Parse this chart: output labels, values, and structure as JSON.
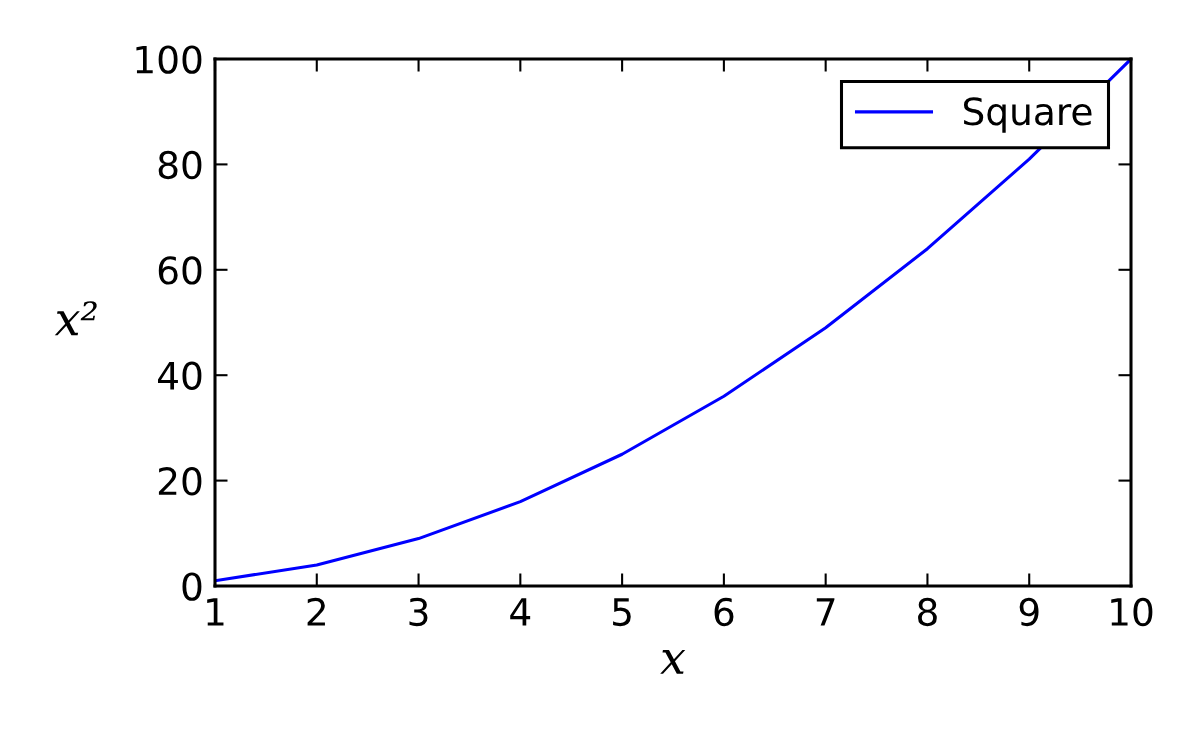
{
  "chart_data": {
    "type": "line",
    "xlabel": "x",
    "ylabel": "x²",
    "x": [
      1,
      2,
      3,
      4,
      5,
      6,
      7,
      8,
      9,
      10
    ],
    "series": [
      {
        "name": "Square",
        "color": "#0000ff",
        "values": [
          1,
          4,
          9,
          16,
          25,
          36,
          49,
          64,
          81,
          100
        ]
      }
    ],
    "xlim": [
      1,
      10
    ],
    "xticks": [
      1,
      2,
      3,
      4,
      5,
      6,
      7,
      8,
      9,
      10
    ],
    "ylim": [
      0,
      100
    ],
    "yticks": [
      0,
      20,
      40,
      60,
      80,
      100
    ],
    "grid": false,
    "legend": "top right",
    "marker": "none",
    "line_style": "solid"
  }
}
